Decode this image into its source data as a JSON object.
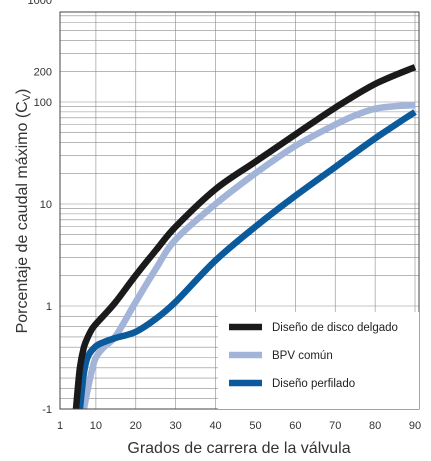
{
  "chart_data": {
    "type": "line",
    "title": "",
    "xlabel": "Grados de carrera de la válvula",
    "ylabel_main": "Porcentaje de caudal máximo (C",
    "ylabel_sub": "V",
    "ylabel_close": ")",
    "xlim": [
      1,
      91
    ],
    "x_ticks": [
      1,
      10,
      20,
      30,
      40,
      50,
      60,
      70,
      80,
      90
    ],
    "y_ticks": [
      {
        "value": -1,
        "label": "-1"
      },
      {
        "value": 1,
        "label": "1"
      },
      {
        "value": 10,
        "label": "10"
      },
      {
        "value": 100,
        "label": "100"
      },
      {
        "value": 200,
        "label": "200"
      },
      {
        "value": 1000,
        "label": "1000"
      }
    ],
    "grid": true,
    "legend_position": "bottom-right",
    "series": [
      {
        "name": "Diseño de disco delgado",
        "color": "#1a1a1a",
        "points": [
          [
            5,
            -1
          ],
          [
            6,
            -0.2
          ],
          [
            7,
            0.2
          ],
          [
            8,
            0.4
          ],
          [
            9,
            0.55
          ],
          [
            10,
            0.65
          ],
          [
            12,
            0.82
          ],
          [
            15,
            1.1
          ],
          [
            20,
            2.0
          ],
          [
            25,
            3.5
          ],
          [
            30,
            6
          ],
          [
            40,
            14
          ],
          [
            50,
            26
          ],
          [
            60,
            48
          ],
          [
            70,
            88
          ],
          [
            80,
            150
          ],
          [
            90,
            220
          ]
        ]
      },
      {
        "name": "BPV común",
        "color": "#a3b4d9",
        "points": [
          [
            7,
            -1
          ],
          [
            8,
            -0.6
          ],
          [
            9,
            -0.25
          ],
          [
            10,
            0
          ],
          [
            12,
            0.2
          ],
          [
            15,
            0.42
          ],
          [
            20,
            1.1
          ],
          [
            25,
            2.3
          ],
          [
            30,
            4.5
          ],
          [
            40,
            10
          ],
          [
            50,
            20
          ],
          [
            60,
            37
          ],
          [
            70,
            60
          ],
          [
            75,
            74
          ],
          [
            80,
            86
          ],
          [
            85,
            91
          ],
          [
            90,
            93
          ]
        ]
      },
      {
        "name": "Diseño perfilado",
        "color": "#0a5a9c",
        "points": [
          [
            6,
            -1
          ],
          [
            7,
            -0.3
          ],
          [
            8,
            0.02
          ],
          [
            10,
            0.22
          ],
          [
            12,
            0.3
          ],
          [
            15,
            0.38
          ],
          [
            20,
            0.5
          ],
          [
            25,
            0.75
          ],
          [
            30,
            1.1
          ],
          [
            40,
            2.8
          ],
          [
            50,
            6
          ],
          [
            60,
            12
          ],
          [
            70,
            23
          ],
          [
            80,
            44
          ],
          [
            90,
            80
          ]
        ]
      }
    ]
  }
}
